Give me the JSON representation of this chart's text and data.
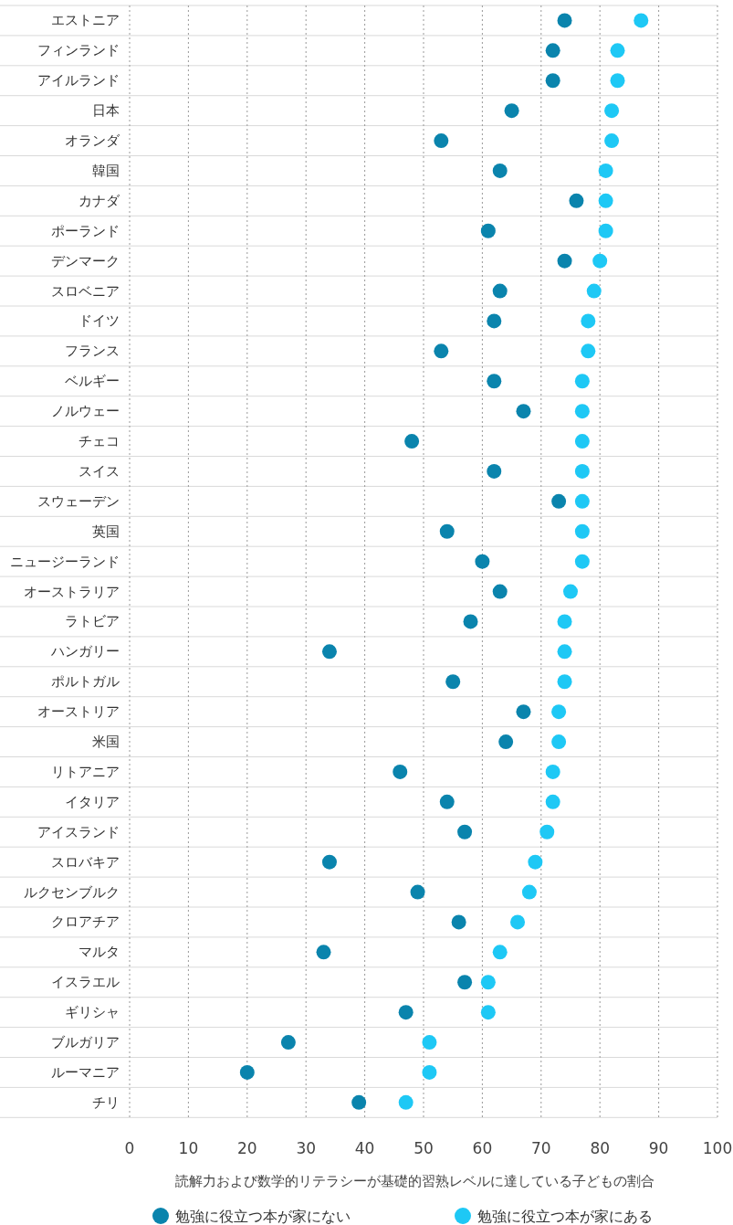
{
  "chart_data": {
    "type": "scatter",
    "orientation": "horizontal",
    "xlabel": "読解力および数学的リテラシーが基礎的習熟レベルに達している子どもの割合",
    "categories": [
      "エストニア",
      "フィンランド",
      "アイルランド",
      "日本",
      "オランダ",
      "韓国",
      "カナダ",
      "ポーランド",
      "デンマーク",
      "スロベニア",
      "ドイツ",
      "フランス",
      "ベルギー",
      "ノルウェー",
      "チェコ",
      "スイス",
      "スウェーデン",
      "英国",
      "ニュージーランド",
      "オーストラリア",
      "ラトビア",
      "ハンガリー",
      "ポルトガル",
      "オーストリア",
      "米国",
      "リトアニア",
      "イタリア",
      "アイスランド",
      "スロバキア",
      "ルクセンブルク",
      "クロアチア",
      "マルタ",
      "イスラエル",
      "ギリシャ",
      "ブルガリア",
      "ルーマニア",
      "チリ"
    ],
    "series": [
      {
        "name": "勉強に役立つ本が家にない",
        "color": "#0a84ad",
        "values": [
          74,
          72,
          72,
          65,
          53,
          63,
          76,
          61,
          74,
          63,
          62,
          53,
          62,
          67,
          48,
          62,
          73,
          54,
          60,
          63,
          58,
          34,
          55,
          67,
          64,
          46,
          54,
          57,
          34,
          49,
          56,
          33,
          57,
          47,
          27,
          20,
          39
        ]
      },
      {
        "name": "勉強に役立つ本が家にある",
        "color": "#1ec8f5",
        "values": [
          87,
          83,
          83,
          82,
          82,
          81,
          81,
          81,
          80,
          79,
          78,
          78,
          77,
          77,
          77,
          77,
          77,
          77,
          77,
          75,
          74,
          74,
          74,
          73,
          73,
          72,
          72,
          71,
          69,
          68,
          66,
          63,
          61,
          61,
          51,
          51,
          47
        ]
      }
    ],
    "xlim": [
      0,
      100
    ],
    "xticks": [
      0,
      10,
      20,
      30,
      40,
      50,
      60,
      70,
      80,
      90,
      100
    ],
    "grid": "x",
    "legend": "bottom",
    "marker": "circle"
  }
}
